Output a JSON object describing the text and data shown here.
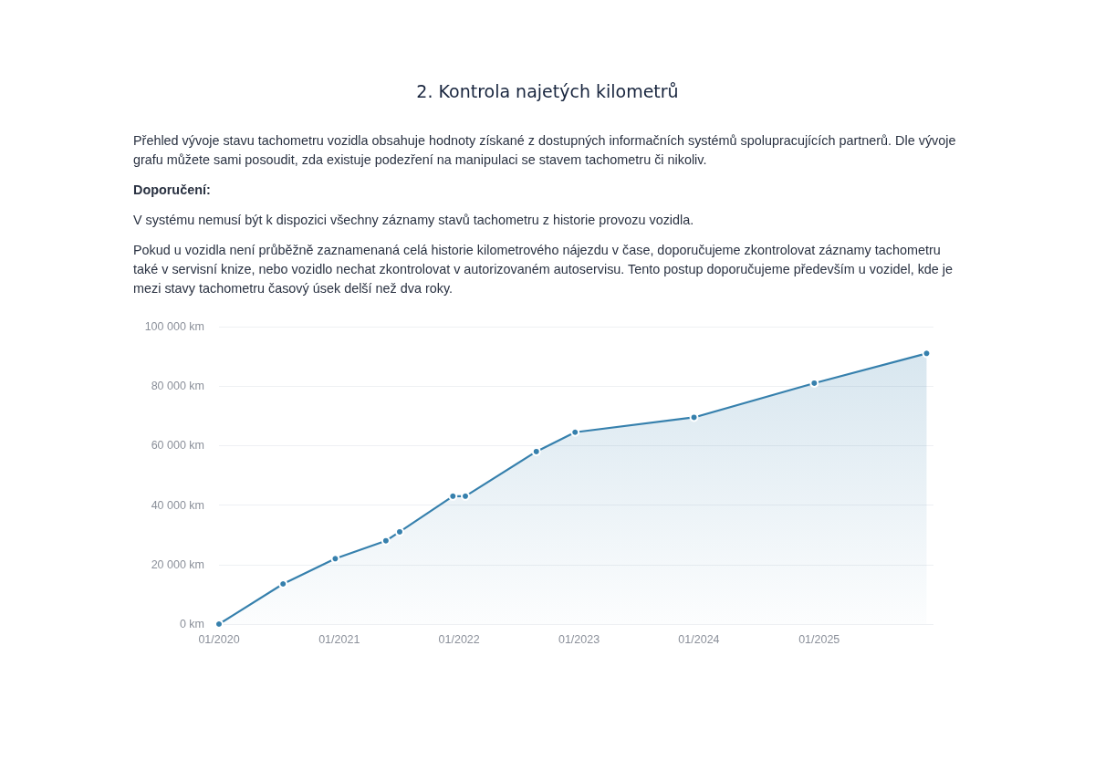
{
  "chart_data": {
    "type": "area",
    "title": "2. Kontrola najetých kilometrů",
    "subtitle": "Přehled vývoje stavu tachometru vozidla obsahuje hodnoty získané z dostupných informačních systémů spolupracujících partnerů. Dle vývoje grafu můžete sami posoudit, zda existuje podezření na manipulaci se stavem tachometru či nikoliv.",
    "annotations": [
      "Doporučení:",
      "V systému nemusí být k dispozici všechny záznamy stavů tachometru z historie provozu vozidla.",
      "Pokud u vozidla není průběžně zaznamenaná celá historie kilometrového nájezdu v čase, doporučujeme zkontrolovat záznamy tachometru také v servisní knize, nebo vozidlo nechat zkontrolovat v autorizovaném autoservisu. Tento postup doporučujeme především u vozidel, kde je mezi stavy tachometru časový úsek delší než dva roky."
    ],
    "x": [
      "2020-01-01",
      "2020-07-14",
      "2020-12-20",
      "2021-05-23",
      "2021-07-04",
      "2021-12-13",
      "2022-01-20",
      "2022-08-24",
      "2022-12-20",
      "2023-12-17",
      "2024-12-17",
      "2025-11-24"
    ],
    "values": [
      0,
      13500,
      22000,
      28000,
      31000,
      43000,
      43000,
      58000,
      64500,
      69500,
      81000,
      91000
    ],
    "color": "#3680ad",
    "xlim": [
      "2020-01-01",
      "2025-12-15"
    ],
    "xticks": [
      {
        "value": "2020-01",
        "label": "01/2020"
      },
      {
        "value": "2021-01",
        "label": "01/2021"
      },
      {
        "value": "2022-01",
        "label": "01/2022"
      },
      {
        "value": "2023-01",
        "label": "01/2023"
      },
      {
        "value": "2024-01",
        "label": "01/2024"
      },
      {
        "value": "2025-01",
        "label": "01/2025"
      }
    ],
    "ylim": [
      0,
      100000
    ],
    "yticks": [
      {
        "value": 0,
        "label": "0 km"
      },
      {
        "value": 20000,
        "label": "20 000 km"
      },
      {
        "value": 40000,
        "label": "40 000 km"
      },
      {
        "value": 60000,
        "label": "60 000 km"
      },
      {
        "value": 80000,
        "label": "80 000 km"
      },
      {
        "value": 100000,
        "label": "100 000 km"
      }
    ],
    "grid": "y",
    "marker": "circle"
  }
}
